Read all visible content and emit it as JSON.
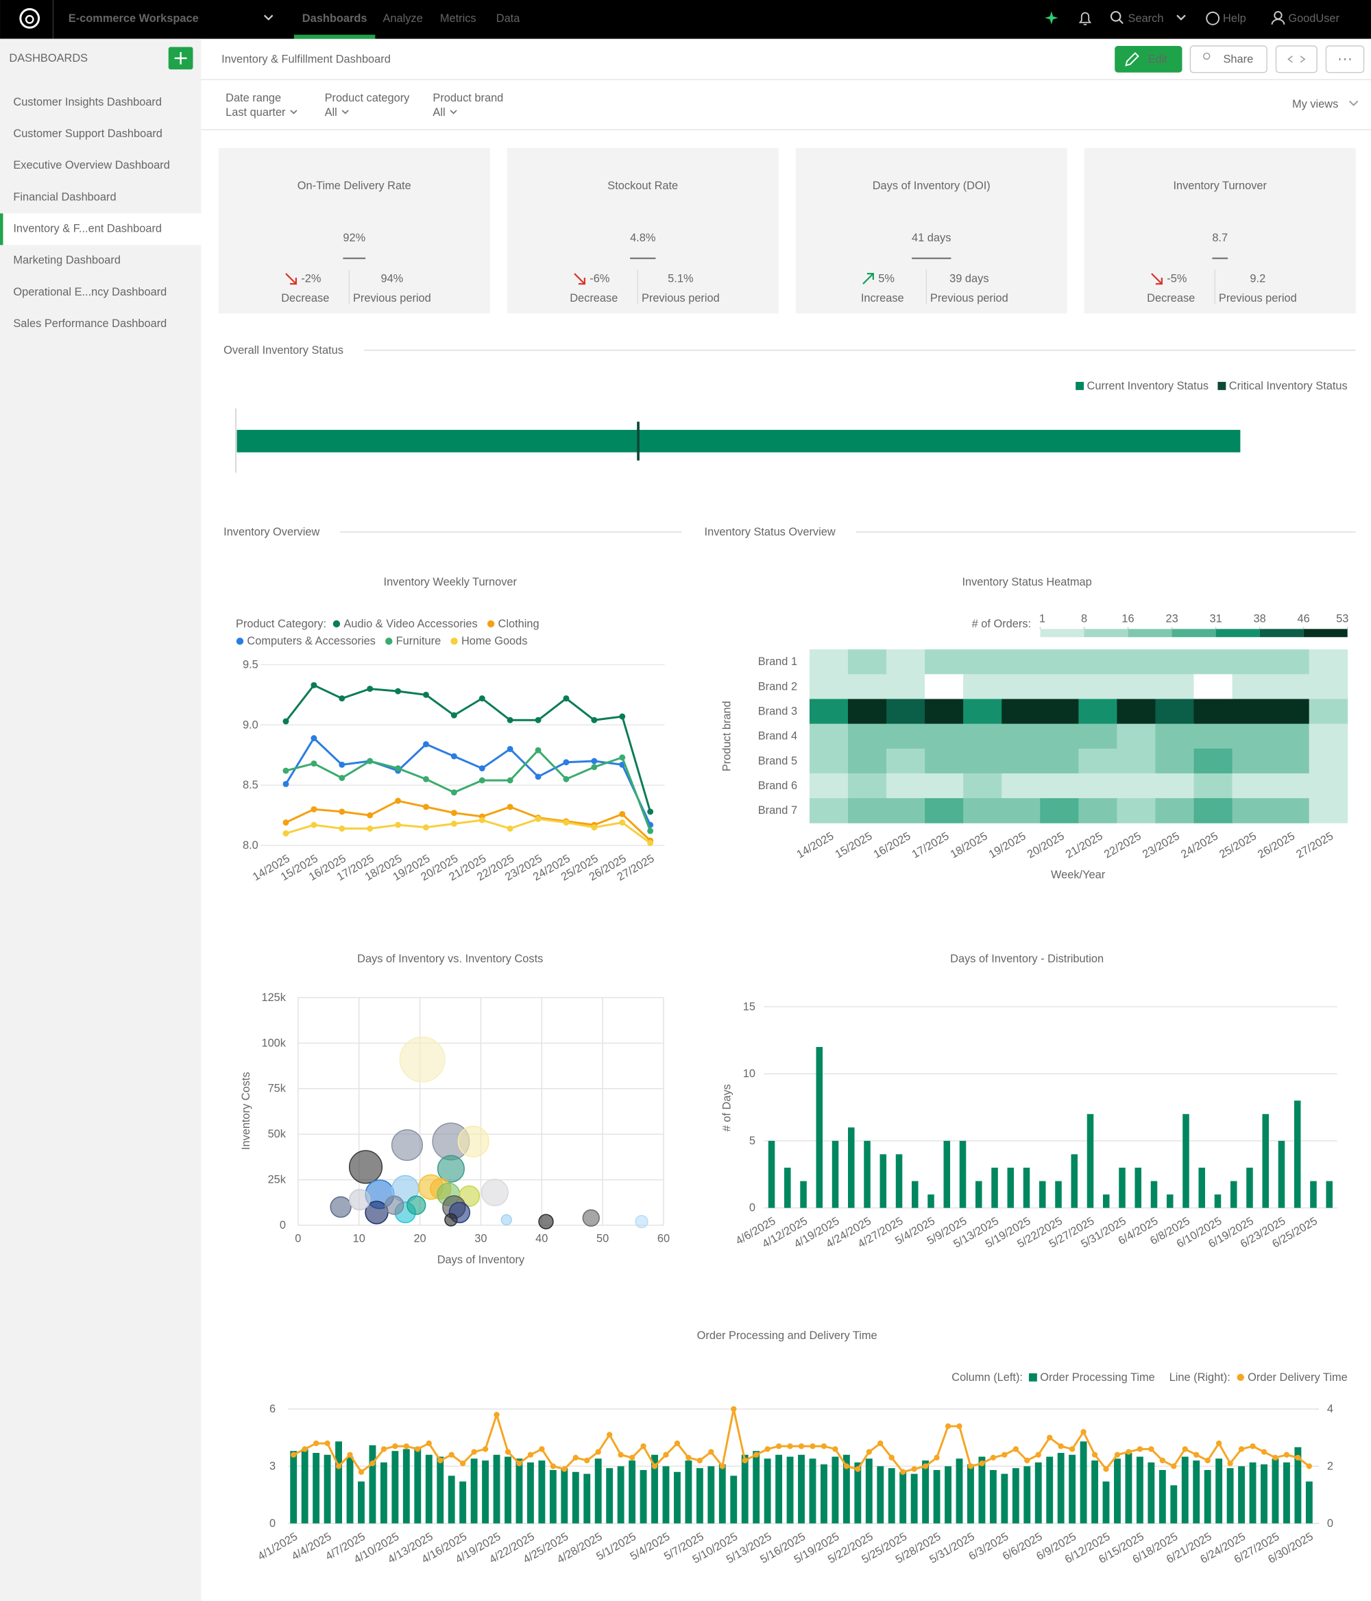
{
  "app": {
    "workspace": "E-commerce Workspace",
    "tabs": [
      "Dashboards",
      "Analyze",
      "Metrics",
      "Data"
    ],
    "search": "Search",
    "help": "Help",
    "user": "GoodUser"
  },
  "sidebar": {
    "heading": "DASHBOARDS",
    "items": [
      "Customer Insights Dashboard",
      "Customer Support Dashboard",
      "Executive Overview Dashboard",
      "Financial Dashboard",
      "Inventory & F...ent Dashboard",
      "Marketing Dashboard",
      "Operational E...ncy Dashboard",
      "Sales Performance Dashboard"
    ],
    "active": 4
  },
  "header": {
    "title": "Inventory & Fulfillment Dashboard",
    "edit": "Edit",
    "share": "Share",
    "my_views": "My views"
  },
  "filters": [
    {
      "label": "Date range",
      "value": "Last quarter"
    },
    {
      "label": "Product category",
      "value": "All"
    },
    {
      "label": "Product brand",
      "value": "All"
    }
  ],
  "kpis": [
    {
      "title": "On-Time Delivery Rate",
      "value": "92%",
      "change": "-2%",
      "direction": "Decrease",
      "previous": "94%",
      "previous_label": "Previous period"
    },
    {
      "title": "Stockout Rate",
      "value": "4.8%",
      "change": "-6%",
      "direction": "Decrease",
      "previous": "5.1%",
      "previous_label": "Previous period"
    },
    {
      "title": "Days of Inventory (DOI)",
      "value": "41 days",
      "change": "5%",
      "direction": "Increase",
      "previous": "39 days",
      "previous_label": "Previous period"
    },
    {
      "title": "Inventory Turnover",
      "value": "8.7",
      "change": "-5%",
      "direction": "Decrease",
      "previous": "9.2",
      "previous_label": "Previous period"
    }
  ],
  "sections": [
    "Overall Inventory Status",
    "Inventory Overview",
    "Inventory Status Overview"
  ],
  "chart_data": [
    {
      "type": "bullet",
      "series": [
        {
          "name": "Current Inventory Status",
          "color": "#00875f",
          "values": [
            2500
          ]
        },
        {
          "name": "Critical Inventory Status",
          "color": "#0c4a37",
          "values": [
            1000
          ]
        }
      ]
    },
    {
      "type": "line",
      "title": "Inventory Weekly Turnover",
      "legend_title": "Product Category:",
      "categories": [
        "14/2025",
        "15/2025",
        "16/2025",
        "17/2025",
        "18/2025",
        "19/2025",
        "20/2025",
        "21/2025",
        "22/2025",
        "23/2025",
        "24/2025",
        "25/2025",
        "26/2025",
        "27/2025"
      ],
      "series": [
        {
          "name": "Audio & Video Accessories",
          "color": "#0a7c54",
          "values": [
            9.03,
            9.33,
            9.22,
            9.3,
            9.28,
            9.25,
            9.08,
            9.22,
            9.04,
            9.04,
            9.22,
            9.04,
            9.07,
            8.28
          ]
        },
        {
          "name": "Clothing",
          "color": "#f5a00f",
          "values": [
            8.19,
            8.3,
            8.28,
            8.25,
            8.37,
            8.32,
            8.27,
            8.24,
            8.32,
            8.23,
            8.2,
            8.17,
            8.26,
            8.04
          ]
        },
        {
          "name": "Computers & Accessories",
          "color": "#2a7de1",
          "values": [
            8.51,
            8.89,
            8.67,
            8.7,
            8.62,
            8.84,
            8.74,
            8.64,
            8.8,
            8.57,
            8.69,
            8.7,
            8.67,
            8.17
          ]
        },
        {
          "name": "Furniture",
          "color": "#3aab6e",
          "values": [
            8.62,
            8.68,
            8.56,
            8.7,
            8.64,
            8.55,
            8.44,
            8.54,
            8.54,
            8.79,
            8.55,
            8.65,
            8.73,
            8.12
          ]
        },
        {
          "name": "Home Goods",
          "color": "#f7cf3c",
          "values": [
            8.1,
            8.17,
            8.14,
            8.14,
            8.17,
            8.15,
            8.18,
            8.21,
            8.14,
            8.22,
            8.19,
            8.15,
            8.19,
            8.02
          ]
        }
      ],
      "ylim": [
        8,
        9.5
      ],
      "yticks": [
        {
          "value": 8,
          "label": "8.0"
        },
        8.5,
        {
          "value": 9,
          "label": "9.0"
        },
        9.5
      ],
      "grid": true
    },
    {
      "type": "heatmap",
      "title": "Inventory Status Heatmap",
      "legend_title": "# of Orders:",
      "categories": [
        "14/2025",
        "15/2025",
        "16/2025",
        "17/2025",
        "18/2025",
        "19/2025",
        "20/2025",
        "21/2025",
        "22/2025",
        "23/2025",
        "24/2025",
        "25/2025",
        "26/2025",
        "27/2025"
      ],
      "rows": [
        "Brand 1",
        "Brand 2",
        "Brand 3",
        "Brand 4",
        "Brand 5",
        "Brand 6",
        "Brand 7"
      ],
      "values": [
        [
          5,
          14,
          6,
          12,
          12,
          12,
          12,
          12,
          12,
          12,
          12,
          12,
          12,
          4
        ],
        [
          6,
          6,
          6,
          null,
          7,
          7,
          7,
          7,
          7,
          7,
          null,
          7,
          7,
          5
        ],
        [
          34,
          50,
          44,
          50,
          33,
          52,
          47,
          36,
          50,
          45,
          48,
          50,
          46,
          14
        ],
        [
          12,
          20,
          20,
          20,
          20,
          20,
          20,
          20,
          12,
          20,
          20,
          20,
          20,
          6
        ],
        [
          12,
          20,
          12,
          20,
          20,
          20,
          20,
          12,
          12,
          20,
          28,
          20,
          20,
          6
        ],
        [
          6,
          12,
          6,
          6,
          12,
          6,
          6,
          6,
          6,
          6,
          12,
          6,
          6,
          5
        ],
        [
          12,
          20,
          20,
          28,
          20,
          20,
          28,
          20,
          12,
          20,
          28,
          20,
          20,
          6
        ]
      ],
      "scale_ticks": [
        1,
        8,
        16,
        23,
        31,
        38,
        46,
        53
      ],
      "scale_colors": [
        "#cdeae0",
        "#a6dac8",
        "#7fc8af",
        "#4db192",
        "#14916c",
        "#0b5e47",
        "#06301f"
      ],
      "xlabel": "Week/Year",
      "ylabel": "Product brand"
    },
    {
      "type": "scatter",
      "title": "Days of Inventory vs. Inventory Costs",
      "x": [
        20.4,
        11.1,
        17.9,
        25.1,
        28.8,
        25.1,
        7.0,
        13.4,
        12.9,
        17.6,
        17.6,
        19.4,
        21.8,
        23.4,
        24.7,
        28.1,
        32.3,
        25.6,
        26.5,
        25.1,
        40.7,
        48.1,
        34.2,
        56.4,
        10.1,
        15.8
      ],
      "values": [
        91000,
        32000,
        44000,
        46000,
        46000,
        31000,
        10000,
        17000,
        7000,
        20000,
        7000,
        11000,
        21000,
        20000,
        17000,
        16000,
        18000,
        10000,
        7000,
        3000,
        2000,
        4000,
        3000,
        2000,
        14000,
        11000
      ],
      "sizes": [
        484,
        256,
        225,
        324,
        225,
        169,
        100,
        196,
        121,
        169,
        100,
        81,
        144,
        100,
        121,
        100,
        169,
        121,
        100,
        36,
        49,
        64,
        25,
        36,
        100,
        81
      ],
      "colors": [
        "#f7eebf",
        "#3a3a3a",
        "#8a93a8",
        "#8c93a3",
        "#f9ecb0",
        "#3a9d8a",
        "#5b6c8a",
        "#2f7fd8",
        "#1d2f6b",
        "#8fc8ee",
        "#27c3d6",
        "#1aa58a",
        "#f2c232",
        "#f5b82e",
        "#7cc46a",
        "#c9d64a",
        "#d9d9de",
        "#555555",
        "#233a80",
        "#2b2b2b",
        "#2b2b2b",
        "#6b6b6b",
        "#9fd2f3",
        "#b9dcf6",
        "#c9ccd4",
        "#7d8699"
      ],
      "xlim": [
        0,
        60
      ],
      "xticks": [
        0,
        10,
        20,
        30,
        40,
        50,
        60
      ],
      "ylim": [
        0,
        125000
      ],
      "yticks": [
        0,
        {
          "value": 25000,
          "label": "25k"
        },
        {
          "value": 50000,
          "label": "50k"
        },
        {
          "value": 75000,
          "label": "75k"
        },
        {
          "value": 100000,
          "label": "100k"
        },
        {
          "value": 125000,
          "label": "125k"
        }
      ],
      "xlabel": "Days of Inventory",
      "ylabel": "Inventory Costs",
      "grid": true
    },
    {
      "type": "bar",
      "title": "Days of Inventory - Distribution",
      "categories": [
        "4/6/2025",
        null,
        "4/12/2025",
        null,
        "4/19/2025",
        null,
        "4/24/2025",
        null,
        "4/27/2025",
        null,
        "5/4/2025",
        null,
        "5/9/2025",
        null,
        "5/13/2025",
        null,
        "5/19/2025",
        null,
        "5/22/2025",
        null,
        "5/27/2025",
        null,
        "5/31/2025",
        null,
        "6/4/2025",
        null,
        "6/8/2025",
        null,
        "6/10/2025",
        null,
        "6/19/2025",
        null,
        "6/23/2025",
        null,
        "6/25/2025",
        null
      ],
      "values": [
        5,
        3,
        2,
        12,
        5,
        6,
        5,
        4,
        4,
        2,
        1,
        5,
        5,
        2,
        3,
        3,
        3,
        2,
        2,
        4,
        7,
        1,
        3,
        3,
        2,
        1,
        7,
        3,
        1,
        2,
        3,
        7,
        5,
        8,
        2,
        2
      ],
      "color": "#00875f",
      "ylim": [
        0,
        15
      ],
      "yticks": [
        0,
        5,
        10,
        15
      ],
      "ylabel": "# of Days",
      "grid": true
    },
    {
      "type": "combo",
      "title": "Order Processing and Delivery Time",
      "legend_left": "Column (Left):",
      "legend_right": "Line (Right):",
      "categories": [
        "4/1/2025",
        null,
        null,
        "4/4/2025",
        null,
        null,
        "4/7/2025",
        null,
        null,
        "4/10/2025",
        null,
        null,
        "4/13/2025",
        null,
        null,
        "4/16/2025",
        null,
        null,
        "4/19/2025",
        null,
        null,
        "4/22/2025",
        null,
        null,
        "4/25/2025",
        null,
        null,
        "4/28/2025",
        null,
        null,
        "5/1/2025",
        null,
        null,
        "5/4/2025",
        null,
        null,
        "5/7/2025",
        null,
        null,
        "5/10/2025",
        null,
        null,
        "5/13/2025",
        null,
        null,
        "5/16/2025",
        null,
        null,
        "5/19/2025",
        null,
        null,
        "5/22/2025",
        null,
        null,
        "5/25/2025",
        null,
        null,
        "5/28/2025",
        null,
        null,
        "5/31/2025",
        null,
        null,
        "6/3/2025",
        null,
        null,
        "6/6/2025",
        null,
        null,
        "6/9/2025",
        null,
        null,
        "6/12/2025",
        null,
        null,
        "6/15/2025",
        null,
        null,
        "6/18/2025",
        null,
        null,
        "6/21/2025",
        null,
        null,
        "6/24/2025",
        null,
        null,
        "6/27/2025",
        null,
        null,
        "6/30/2025"
      ],
      "series": [
        {
          "name": "Order Processing Time",
          "color": "#00875f",
          "values": [
            3.8,
            3.9,
            3.7,
            3.6,
            4.3,
            3.5,
            2.2,
            4.1,
            3.2,
            3.8,
            3.9,
            4.0,
            3.6,
            3.5,
            2.5,
            2.2,
            3.4,
            3.3,
            3.6,
            3.5,
            3.4,
            3.2,
            3.3,
            2.8,
            2.9,
            2.7,
            2.6,
            3.4,
            2.9,
            3.0,
            3.3,
            2.8,
            3.6,
            3.0,
            2.7,
            3.3,
            2.9,
            3.0,
            3.1,
            2.5,
            3.6,
            3.8,
            3.4,
            3.6,
            3.5,
            3.6,
            3.4,
            3.1,
            3.5,
            3.6,
            3.2,
            3.4,
            3.0,
            2.9,
            2.7,
            2.6,
            3.3,
            2.8,
            3.0,
            3.4,
            3.1,
            3.5,
            2.8,
            2.6,
            2.9,
            3.0,
            3.2,
            3.5,
            3.7,
            3.6,
            4.3,
            3.3,
            2.2,
            3.4,
            3.7,
            3.5,
            3.2,
            2.8,
            2.0,
            3.5,
            3.3,
            2.8,
            3.4,
            2.9,
            3.0,
            3.2,
            3.1,
            3.4,
            3.2,
            4.0,
            2.2
          ]
        },
        {
          "name": "Order Delivery Time",
          "color": "#f5a623",
          "axis": "y2",
          "values": [
            2.4,
            2.6,
            2.8,
            2.8,
            2.0,
            2.4,
            1.8,
            2.1,
            2.6,
            2.7,
            2.7,
            2.6,
            2.8,
            2.2,
            2.4,
            2.1,
            2.5,
            2.6,
            3.8,
            2.5,
            2.1,
            2.4,
            2.6,
            2.0,
            1.9,
            2.3,
            2.2,
            2.5,
            3.1,
            2.4,
            2.3,
            2.7,
            2.0,
            2.4,
            2.8,
            2.3,
            2.2,
            2.5,
            2.0,
            4.0,
            2.2,
            2.4,
            2.6,
            2.7,
            2.7,
            2.7,
            2.7,
            2.7,
            2.6,
            2.0,
            1.9,
            2.5,
            2.8,
            2.3,
            1.8,
            1.9,
            2.0,
            2.3,
            3.4,
            3.4,
            2.0,
            2.1,
            2.3,
            2.4,
            2.6,
            2.2,
            2.4,
            3.0,
            2.7,
            2.6,
            3.2,
            2.4,
            1.9,
            2.4,
            2.5,
            2.6,
            2.6,
            2.2,
            2.0,
            2.6,
            2.4,
            2.2,
            2.8,
            2.1,
            2.6,
            2.7,
            2.5,
            2.3,
            2.4,
            2.3,
            2.0
          ]
        }
      ],
      "ylim": [
        0,
        6
      ],
      "yticks": [
        0,
        3,
        6
      ],
      "y2lim": [
        0,
        4
      ],
      "y2ticks": [
        0,
        2,
        4
      ],
      "grid": true
    }
  ]
}
